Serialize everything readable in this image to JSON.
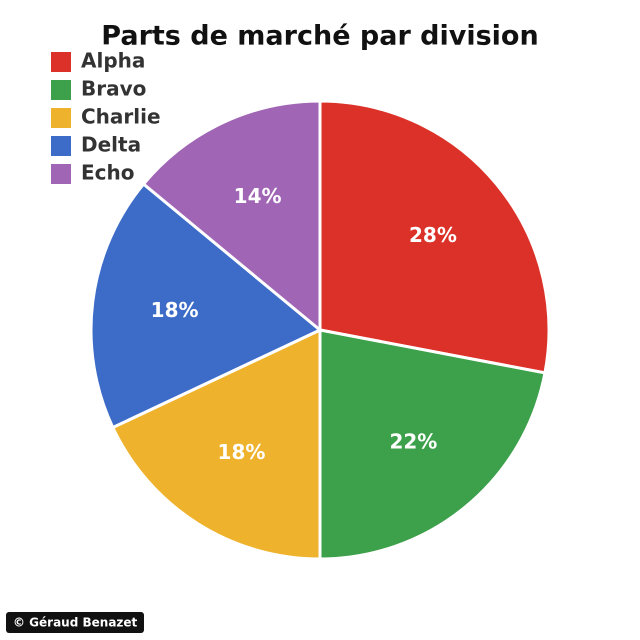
{
  "chart_data": {
    "type": "pie",
    "title": "Parts de marché par division",
    "categories": [
      "Alpha",
      "Bravo",
      "Charlie",
      "Delta",
      "Echo"
    ],
    "values": [
      28,
      22,
      18,
      18,
      14
    ],
    "value_labels": [
      "28%",
      "22%",
      "18%",
      "18%",
      "14%"
    ],
    "colors": [
      "#dc3128",
      "#3da04a",
      "#eeb22c",
      "#3d6cc8",
      "#a065b4"
    ],
    "legend": "top-left"
  },
  "credit": "© Géraud Benazet"
}
